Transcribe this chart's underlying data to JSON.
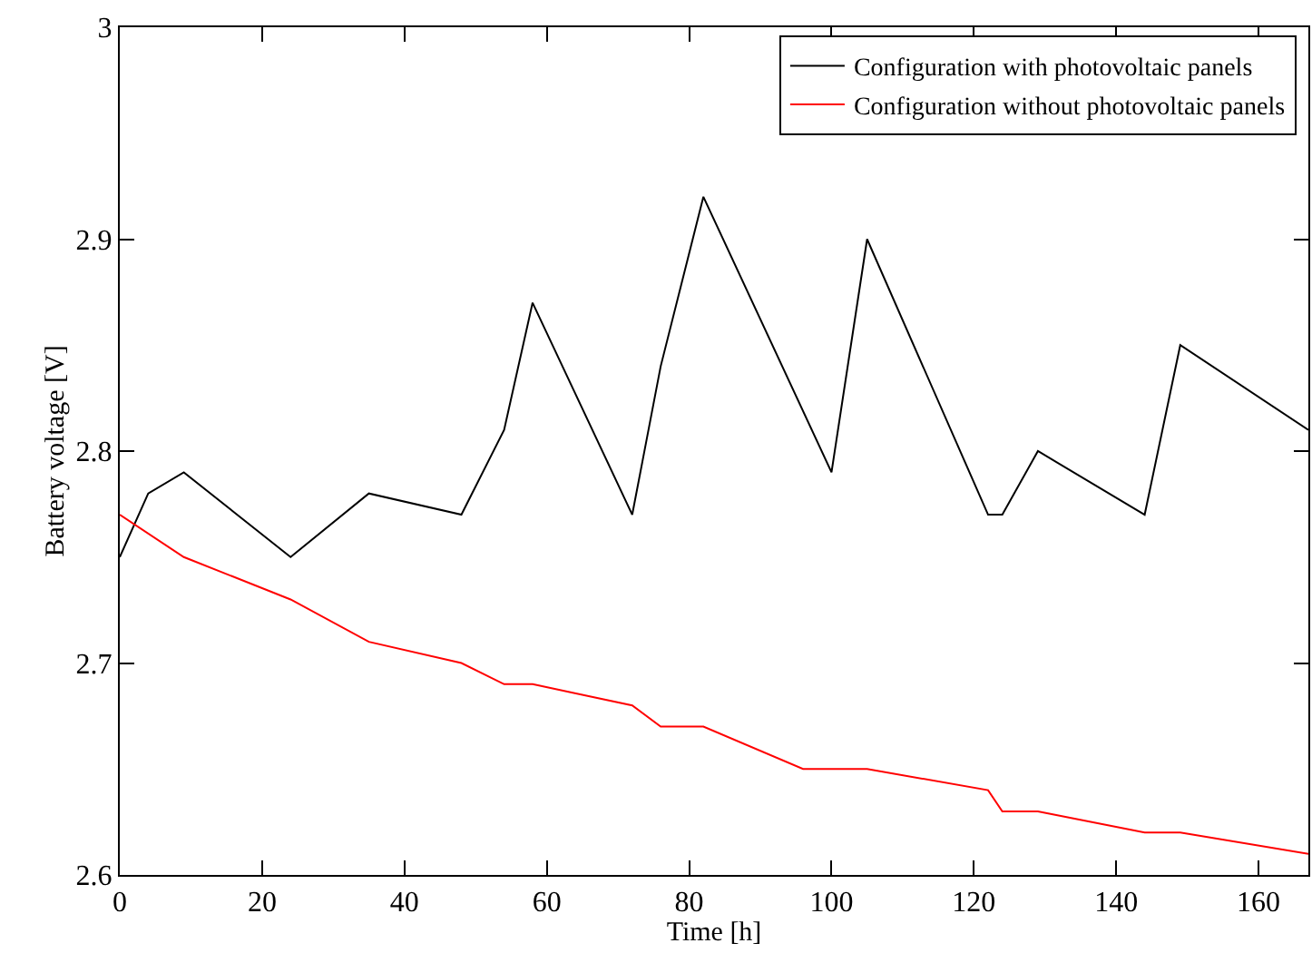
{
  "chart_data": {
    "type": "line",
    "xlabel": "Time [h]",
    "ylabel": "Battery voltage [V]",
    "xlim": [
      0,
      167
    ],
    "xticks": [
      0,
      20,
      40,
      60,
      80,
      100,
      120,
      140,
      160
    ],
    "ylim": [
      2.6,
      3
    ],
    "yticks": [
      2.6,
      2.7,
      2.8,
      2.9,
      3
    ],
    "grid": false,
    "legend": "top right",
    "marker": "none",
    "line_style": "solid",
    "series": [
      {
        "name": "Configuration with photovoltaic panels",
        "color": "#000000",
        "x": [
          0,
          4,
          9,
          24,
          35,
          48,
          54,
          58,
          72,
          76,
          82,
          100,
          105,
          122,
          124,
          129,
          144,
          149,
          167
        ],
        "values": [
          2.75,
          2.78,
          2.79,
          2.75,
          2.78,
          2.77,
          2.81,
          2.87,
          2.77,
          2.84,
          2.92,
          2.79,
          2.9,
          2.77,
          2.77,
          2.8,
          2.77,
          2.85,
          2.81
        ]
      },
      {
        "name": "Configuration without photovoltaic panels",
        "color": "#ff0000",
        "x": [
          0,
          9,
          24,
          35,
          48,
          54,
          58,
          72,
          76,
          82,
          96,
          105,
          122,
          124,
          129,
          144,
          149,
          167
        ],
        "values": [
          2.77,
          2.75,
          2.73,
          2.71,
          2.7,
          2.69,
          2.69,
          2.68,
          2.67,
          2.67,
          2.65,
          2.65,
          2.64,
          2.63,
          2.63,
          2.62,
          2.62,
          2.61
        ]
      }
    ]
  }
}
